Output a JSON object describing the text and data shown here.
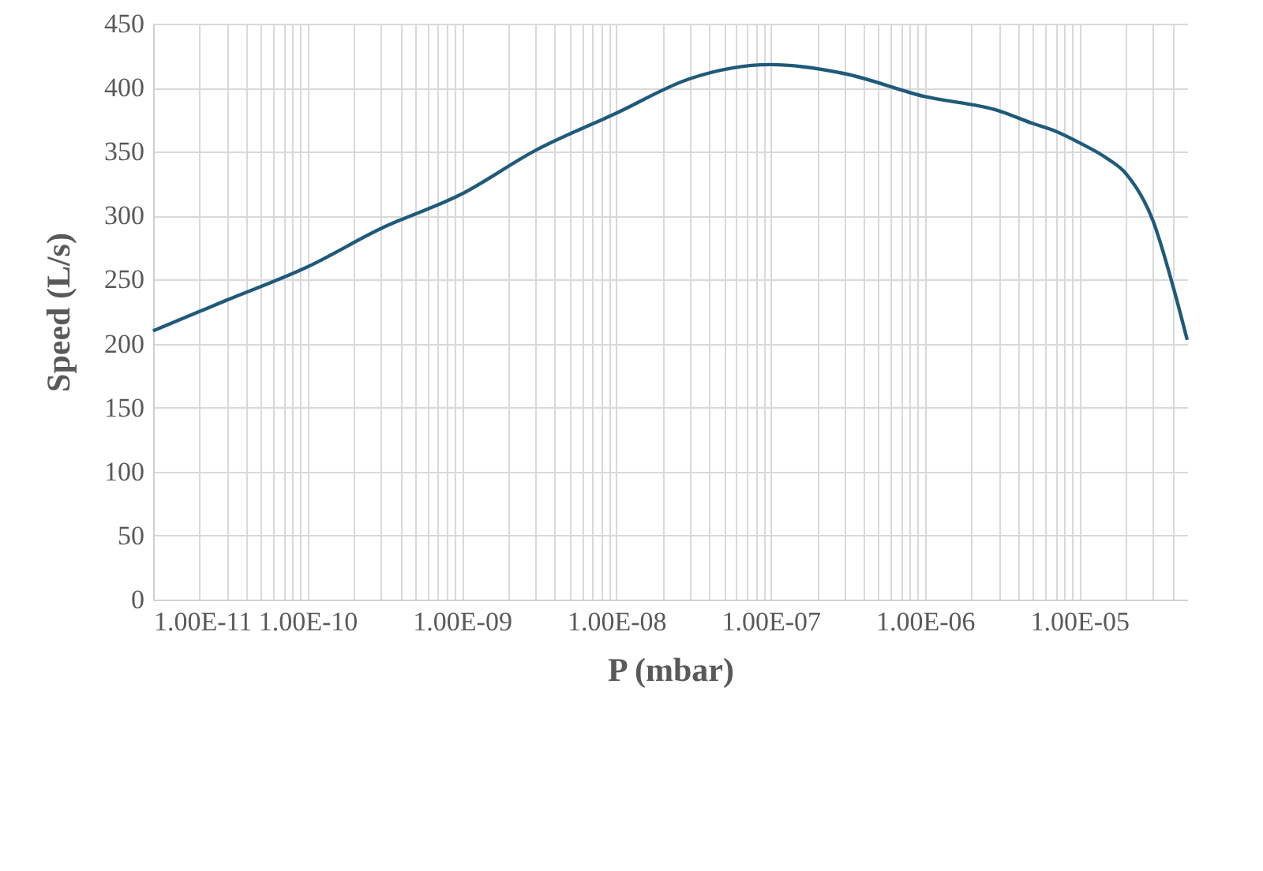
{
  "chart_data": {
    "type": "line",
    "xlabel": "P (mbar)",
    "ylabel": "Speed (L/s)",
    "log": "x",
    "grid": true,
    "marker": "none",
    "line_style": "solid",
    "xlim": [
      1e-11,
      5e-05
    ],
    "ylim": [
      0,
      450
    ],
    "yticks": [
      0,
      50,
      100,
      150,
      200,
      250,
      300,
      350,
      400,
      450
    ],
    "xticks": [
      {
        "value": 1e-11,
        "label": "1.00E-11"
      },
      {
        "value": 2e-11,
        "label": null
      },
      {
        "value": 3e-11,
        "label": null
      },
      {
        "value": 4e-11,
        "label": null
      },
      {
        "value": 5e-11,
        "label": null
      },
      {
        "value": 6e-11,
        "label": null
      },
      {
        "value": 7e-11,
        "label": null
      },
      {
        "value": 8e-11,
        "label": null
      },
      {
        "value": 9e-11,
        "label": null
      },
      {
        "value": 1e-10,
        "label": "1.00E-10"
      },
      {
        "value": 2e-10,
        "label": null
      },
      {
        "value": 3e-10,
        "label": null
      },
      {
        "value": 4e-10,
        "label": null
      },
      {
        "value": 5e-10,
        "label": null
      },
      {
        "value": 6e-10,
        "label": null
      },
      {
        "value": 7e-10,
        "label": null
      },
      {
        "value": 8e-10,
        "label": null
      },
      {
        "value": 9e-10,
        "label": null
      },
      {
        "value": 1e-09,
        "label": "1.00E-09"
      },
      {
        "value": 2e-09,
        "label": null
      },
      {
        "value": 3e-09,
        "label": null
      },
      {
        "value": 4e-09,
        "label": null
      },
      {
        "value": 5e-09,
        "label": null
      },
      {
        "value": 6e-09,
        "label": null
      },
      {
        "value": 7e-09,
        "label": null
      },
      {
        "value": 8e-09,
        "label": null
      },
      {
        "value": 9e-09,
        "label": null
      },
      {
        "value": 1e-08,
        "label": "1.00E-08"
      },
      {
        "value": 2e-08,
        "label": null
      },
      {
        "value": 3e-08,
        "label": null
      },
      {
        "value": 4e-08,
        "label": null
      },
      {
        "value": 5e-08,
        "label": null
      },
      {
        "value": 6e-08,
        "label": null
      },
      {
        "value": 7e-08,
        "label": null
      },
      {
        "value": 8e-08,
        "label": null
      },
      {
        "value": 9e-08,
        "label": null
      },
      {
        "value": 1e-07,
        "label": "1.00E-07"
      },
      {
        "value": 2e-07,
        "label": null
      },
      {
        "value": 3e-07,
        "label": null
      },
      {
        "value": 4e-07,
        "label": null
      },
      {
        "value": 5e-07,
        "label": null
      },
      {
        "value": 6e-07,
        "label": null
      },
      {
        "value": 7e-07,
        "label": null
      },
      {
        "value": 8e-07,
        "label": null
      },
      {
        "value": 9e-07,
        "label": null
      },
      {
        "value": 1e-06,
        "label": "1.00E-06"
      },
      {
        "value": 2e-06,
        "label": null
      },
      {
        "value": 3e-06,
        "label": null
      },
      {
        "value": 4e-06,
        "label": null
      },
      {
        "value": 5e-06,
        "label": null
      },
      {
        "value": 6e-06,
        "label": null
      },
      {
        "value": 7e-06,
        "label": null
      },
      {
        "value": 8e-06,
        "label": null
      },
      {
        "value": 9e-06,
        "label": null
      },
      {
        "value": 1e-05,
        "label": "1.00E-05"
      },
      {
        "value": 2e-05,
        "label": null
      },
      {
        "value": 3e-05,
        "label": null
      },
      {
        "value": 4e-05,
        "label": null
      }
    ],
    "x": [
      1e-11,
      3e-11,
      1e-10,
      3e-10,
      1e-09,
      3e-09,
      1e-08,
      3e-08,
      1e-07,
      3e-07,
      1e-06,
      3e-06,
      5e-06,
      7e-06,
      1e-05,
      1.5e-05,
      2e-05,
      3e-05,
      4e-05,
      5e-05
    ],
    "series": [
      {
        "color": "#1f5a7a",
        "values": [
          210,
          234,
          260,
          290,
          317,
          351,
          380,
          407,
          418,
          411,
          393,
          382,
          372,
          366,
          357,
          345,
          333,
          296,
          247,
          203
        ]
      }
    ]
  }
}
